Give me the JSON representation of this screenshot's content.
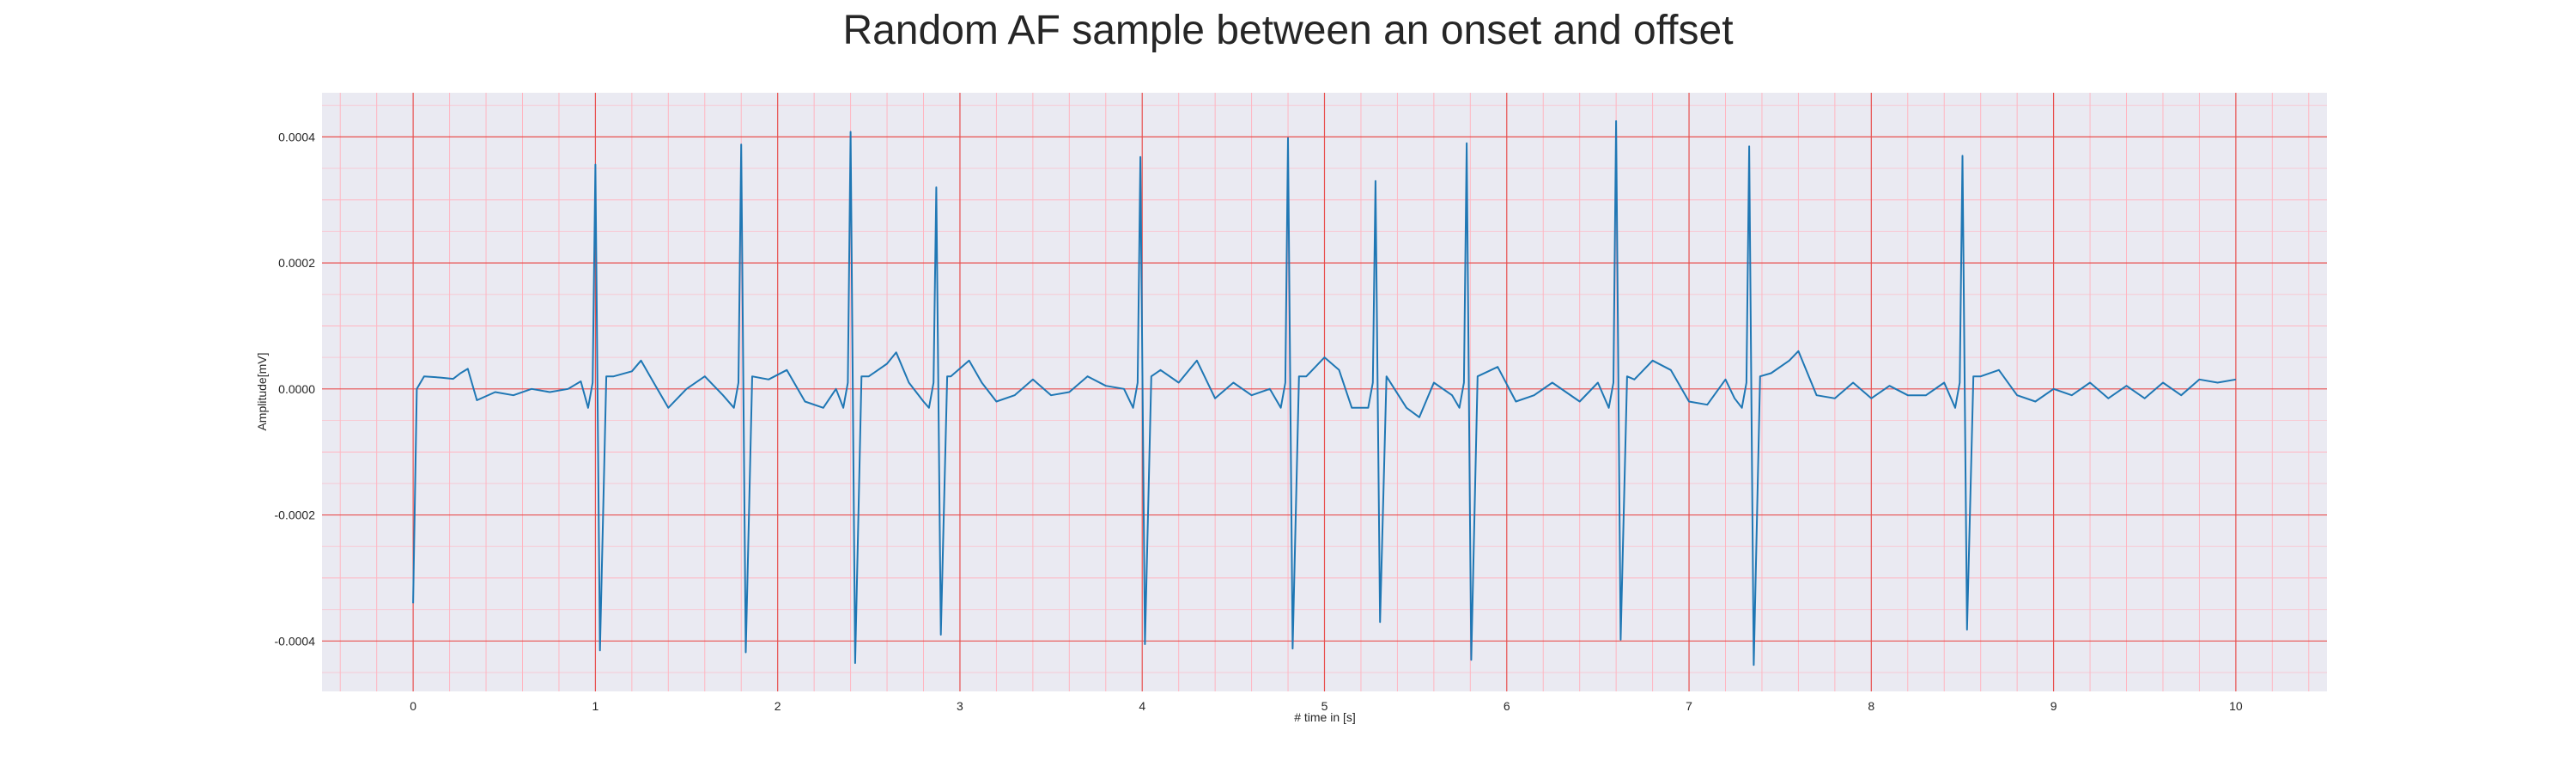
{
  "chart_data": {
    "type": "line",
    "title": "Random AF sample between an onset and offset",
    "xlabel": "# time in [s]",
    "ylabel": "Amplitude[mV]",
    "xlim": [
      -0.5,
      10.5
    ],
    "ylim": [
      -0.00048,
      0.00047
    ],
    "x_ticks": [
      0,
      1,
      2,
      3,
      4,
      5,
      6,
      7,
      8,
      9,
      10
    ],
    "x_tick_labels": [
      "0",
      "1",
      "2",
      "3",
      "4",
      "5",
      "6",
      "7",
      "8",
      "9",
      "10"
    ],
    "y_ticks": [
      -0.0004,
      -0.0002,
      0.0,
      0.0002,
      0.0004
    ],
    "y_tick_labels": [
      "-0.0004",
      "-0.0002",
      "0.0000",
      "0.0002",
      "0.0004"
    ],
    "grid": true,
    "series": [
      {
        "color": "#1f77b4",
        "beats": [
          {
            "t": 1.0,
            "peak": 0.000356,
            "trough": -0.000415
          },
          {
            "t": 1.8,
            "peak": 0.000388,
            "trough": -0.000418
          },
          {
            "t": 2.4,
            "peak": 0.000408,
            "trough": -0.000435
          },
          {
            "t": 2.87,
            "peak": 0.00032,
            "trough": -0.00039
          },
          {
            "t": 3.99,
            "peak": 0.000368,
            "trough": -0.000405
          },
          {
            "t": 4.8,
            "peak": 0.000398,
            "trough": -0.000412
          },
          {
            "t": 5.28,
            "peak": 0.00033,
            "trough": -0.00037
          },
          {
            "t": 5.78,
            "peak": 0.00039,
            "trough": -0.00043
          },
          {
            "t": 6.6,
            "peak": 0.000425,
            "trough": -0.000398
          },
          {
            "t": 7.33,
            "peak": 0.000385,
            "trough": -0.000438
          },
          {
            "t": 8.5,
            "peak": 0.00037,
            "trough": -0.000382
          }
        ],
        "baseline": [
          [
            0.0,
            -0.00034
          ],
          [
            0.02,
            0.0
          ],
          [
            0.06,
            2e-05
          ],
          [
            0.15,
            1.8e-05
          ],
          [
            0.22,
            1.6e-05
          ],
          [
            0.26,
            2.5e-05
          ],
          [
            0.3,
            3.2e-05
          ],
          [
            0.35,
            -1.8e-05
          ],
          [
            0.45,
            -5e-06
          ],
          [
            0.55,
            -1e-05
          ],
          [
            0.65,
            0.0
          ],
          [
            0.75,
            -5e-06
          ],
          [
            0.85,
            0.0
          ],
          [
            0.92,
            1.2e-05
          ],
          [
            1.1,
            2e-05
          ],
          [
            1.2,
            2.8e-05
          ],
          [
            1.25,
            4.5e-05
          ],
          [
            1.32,
            1e-05
          ],
          [
            1.4,
            -3e-05
          ],
          [
            1.5,
            0.0
          ],
          [
            1.6,
            2e-05
          ],
          [
            1.7,
            -1e-05
          ],
          [
            1.85,
            2.5e-05
          ],
          [
            1.95,
            1.5e-05
          ],
          [
            2.05,
            3e-05
          ],
          [
            2.15,
            -2e-05
          ],
          [
            2.25,
            -3e-05
          ],
          [
            2.32,
            0.0
          ],
          [
            2.5,
            2e-05
          ],
          [
            2.6,
            4e-05
          ],
          [
            2.65,
            5.8e-05
          ],
          [
            2.72,
            1e-05
          ],
          [
            2.8,
            -2e-05
          ],
          [
            2.95,
            2e-05
          ],
          [
            3.05,
            4.5e-05
          ],
          [
            3.12,
            1e-05
          ],
          [
            3.2,
            -2e-05
          ],
          [
            3.3,
            -1e-05
          ],
          [
            3.4,
            1.5e-05
          ],
          [
            3.5,
            -1e-05
          ],
          [
            3.6,
            -5e-06
          ],
          [
            3.7,
            2e-05
          ],
          [
            3.8,
            5e-06
          ],
          [
            3.9,
            0.0
          ],
          [
            4.1,
            3e-05
          ],
          [
            4.2,
            1e-05
          ],
          [
            4.3,
            4.5e-05
          ],
          [
            4.4,
            -1.5e-05
          ],
          [
            4.5,
            1e-05
          ],
          [
            4.6,
            -1e-05
          ],
          [
            4.7,
            0.0
          ],
          [
            4.9,
            2e-05
          ],
          [
            5.0,
            5e-05
          ],
          [
            5.08,
            3e-05
          ],
          [
            5.15,
            -3e-05
          ],
          [
            5.22,
            -1e-05
          ],
          [
            5.35,
            4.5e-05
          ],
          [
            5.45,
            -3e-05
          ],
          [
            5.52,
            -4.5e-05
          ],
          [
            5.6,
            1e-05
          ],
          [
            5.7,
            -1e-05
          ],
          [
            5.85,
            2e-05
          ],
          [
            5.95,
            3.5e-05
          ],
          [
            6.05,
            -2e-05
          ],
          [
            6.15,
            -1e-05
          ],
          [
            6.25,
            1e-05
          ],
          [
            6.4,
            -2e-05
          ],
          [
            6.5,
            1e-05
          ],
          [
            6.7,
            1.5e-05
          ],
          [
            6.8,
            4.5e-05
          ],
          [
            6.9,
            3e-05
          ],
          [
            7.0,
            -2e-05
          ],
          [
            7.1,
            -2.5e-05
          ],
          [
            7.2,
            1.5e-05
          ],
          [
            7.25,
            -1.5e-05
          ],
          [
            7.45,
            2.5e-05
          ],
          [
            7.55,
            4.5e-05
          ],
          [
            7.6,
            6e-05
          ],
          [
            7.7,
            -1e-05
          ],
          [
            7.8,
            -1.5e-05
          ],
          [
            7.9,
            1e-05
          ],
          [
            8.0,
            -1.5e-05
          ],
          [
            8.1,
            5e-06
          ],
          [
            8.2,
            -1e-05
          ],
          [
            8.3,
            -1e-05
          ],
          [
            8.4,
            1e-05
          ],
          [
            8.6,
            2e-05
          ],
          [
            8.7,
            3e-05
          ],
          [
            8.8,
            -1e-05
          ],
          [
            8.9,
            -2e-05
          ],
          [
            9.0,
            0.0
          ],
          [
            9.1,
            -1e-05
          ],
          [
            9.2,
            1e-05
          ],
          [
            9.3,
            -1.5e-05
          ],
          [
            9.4,
            5e-06
          ],
          [
            9.5,
            -1.5e-05
          ],
          [
            9.6,
            1e-05
          ],
          [
            9.7,
            -1e-05
          ],
          [
            9.8,
            1.5e-05
          ],
          [
            9.9,
            1e-05
          ],
          [
            10.0,
            1.5e-05
          ]
        ]
      }
    ]
  }
}
